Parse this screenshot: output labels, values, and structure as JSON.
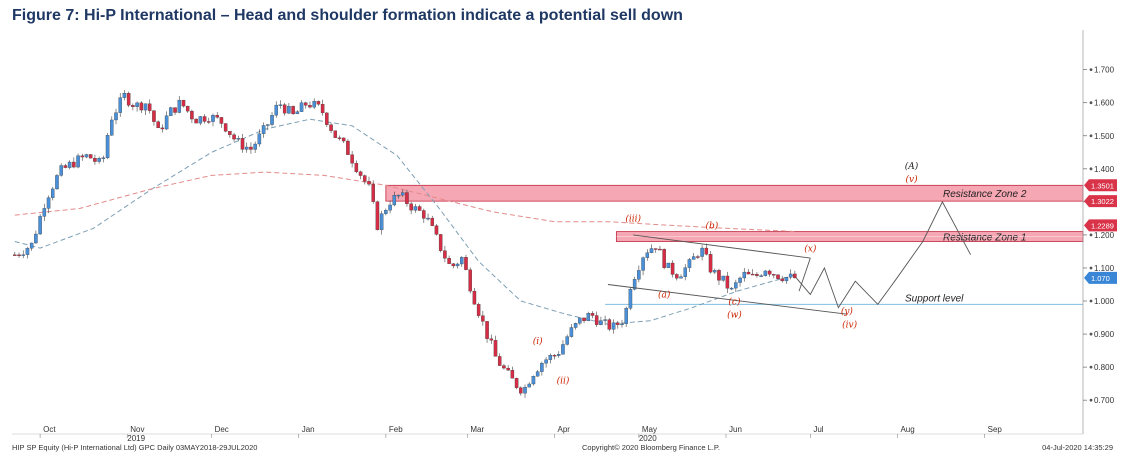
{
  "title": "Figure 7: Hi-P International – Head and shoulder formation indicate a potential sell down",
  "chart_data": {
    "type": "candlestick",
    "ylim": [
      0.64,
      1.82
    ],
    "y_ticks": [
      "0.700",
      "0.800",
      "0.900",
      "1.000",
      "1.100",
      "1.200",
      "1.300",
      "1.400",
      "1.500",
      "1.600",
      "1.700"
    ],
    "x_labels": [
      {
        "label": "Oct",
        "date": "2019-10-01"
      },
      {
        "label": "Nov",
        "date": "2019-11-01"
      },
      {
        "label": "Dec",
        "date": "2019-12-01"
      },
      {
        "label": "Jan",
        "date": "2020-01-01"
      },
      {
        "label": "Feb",
        "date": "2020-02-01"
      },
      {
        "label": "Mar",
        "date": "2020-03-01"
      },
      {
        "label": "Apr",
        "date": "2020-04-01"
      },
      {
        "label": "May",
        "date": "2020-05-01"
      },
      {
        "label": "Jun",
        "date": "2020-06-01"
      },
      {
        "label": "Jul",
        "date": "2020-07-01"
      },
      {
        "label": "Aug",
        "date": "2020-08-01"
      },
      {
        "label": "Sep",
        "date": "2020-09-01"
      }
    ],
    "year_labels": [
      {
        "label": "2019",
        "date": "2019-11-01"
      },
      {
        "label": "2020",
        "date": "2020-05-01"
      }
    ],
    "x_range": [
      "2019-09-21",
      "2020-10-06"
    ],
    "close_path": [
      [
        "2019-09-22",
        1.14
      ],
      [
        "2019-09-28",
        1.17
      ],
      [
        "2019-10-03",
        1.31
      ],
      [
        "2019-10-08",
        1.39
      ],
      [
        "2019-10-13",
        1.42
      ],
      [
        "2019-10-18",
        1.44
      ],
      [
        "2019-10-23",
        1.41
      ],
      [
        "2019-10-26",
        1.55
      ],
      [
        "2019-10-31",
        1.62
      ],
      [
        "2019-11-04",
        1.59
      ],
      [
        "2019-11-08",
        1.6
      ],
      [
        "2019-11-12",
        1.51
      ],
      [
        "2019-11-16",
        1.57
      ],
      [
        "2019-11-20",
        1.6
      ],
      [
        "2019-11-25",
        1.55
      ],
      [
        "2019-11-30",
        1.56
      ],
      [
        "2019-12-05",
        1.54
      ],
      [
        "2019-12-10",
        1.48
      ],
      [
        "2019-12-15",
        1.46
      ],
      [
        "2019-12-20",
        1.52
      ],
      [
        "2019-12-25",
        1.6
      ],
      [
        "2019-12-30",
        1.56
      ],
      [
        "2020-01-04",
        1.6
      ],
      [
        "2020-01-09",
        1.58
      ],
      [
        "2020-01-14",
        1.5
      ],
      [
        "2020-01-18",
        1.46
      ],
      [
        "2020-01-22",
        1.4
      ],
      [
        "2020-01-26",
        1.34
      ],
      [
        "2020-01-29",
        1.23
      ],
      [
        "2020-02-02",
        1.3
      ],
      [
        "2020-02-06",
        1.32
      ],
      [
        "2020-02-11",
        1.28
      ],
      [
        "2020-02-15",
        1.26
      ],
      [
        "2020-02-20",
        1.17
      ],
      [
        "2020-02-24",
        1.1
      ],
      [
        "2020-02-28",
        1.13
      ],
      [
        "2020-03-03",
        1.02
      ],
      [
        "2020-03-07",
        0.92
      ],
      [
        "2020-03-11",
        0.83
      ],
      [
        "2020-03-15",
        0.78
      ],
      [
        "2020-03-18",
        0.75
      ],
      [
        "2020-03-21",
        0.73
      ],
      [
        "2020-03-24",
        0.78
      ],
      [
        "2020-03-28",
        0.82
      ],
      [
        "2020-04-02",
        0.84
      ],
      [
        "2020-04-06",
        0.9
      ],
      [
        "2020-04-10",
        0.94
      ],
      [
        "2020-04-14",
        0.96
      ],
      [
        "2020-04-18",
        0.93
      ],
      [
        "2020-04-22",
        0.92
      ],
      [
        "2020-04-26",
        0.95
      ],
      [
        "2020-04-28",
        1.05
      ],
      [
        "2020-04-30",
        1.09
      ],
      [
        "2020-05-03",
        1.15
      ],
      [
        "2020-05-07",
        1.17
      ],
      [
        "2020-05-11",
        1.1
      ],
      [
        "2020-05-15",
        1.08
      ],
      [
        "2020-05-19",
        1.11
      ],
      [
        "2020-05-23",
        1.16
      ],
      [
        "2020-05-27",
        1.09
      ],
      [
        "2020-05-31",
        1.06
      ],
      [
        "2020-06-03",
        1.03
      ],
      [
        "2020-06-07",
        1.08
      ],
      [
        "2020-06-11",
        1.07
      ],
      [
        "2020-06-15",
        1.1
      ],
      [
        "2020-06-19",
        1.08
      ],
      [
        "2020-06-23",
        1.07
      ],
      [
        "2020-06-26",
        1.07
      ]
    ],
    "moving_averages": [
      {
        "style": "dashed-blue",
        "points": [
          [
            "2019-09-22",
            1.18
          ],
          [
            "2019-10-01",
            1.16
          ],
          [
            "2019-10-20",
            1.22
          ],
          [
            "2019-11-10",
            1.34
          ],
          [
            "2019-12-01",
            1.45
          ],
          [
            "2019-12-20",
            1.52
          ],
          [
            "2020-01-05",
            1.55
          ],
          [
            "2020-01-20",
            1.53
          ],
          [
            "2020-02-05",
            1.44
          ],
          [
            "2020-02-20",
            1.28
          ],
          [
            "2020-03-05",
            1.12
          ],
          [
            "2020-03-20",
            1.0
          ],
          [
            "2020-04-05",
            0.96
          ],
          [
            "2020-04-20",
            0.93
          ],
          [
            "2020-05-05",
            0.94
          ],
          [
            "2020-05-20",
            0.98
          ],
          [
            "2020-06-05",
            1.03
          ],
          [
            "2020-06-26",
            1.08
          ]
        ]
      },
      {
        "style": "dashed-red",
        "points": [
          [
            "2019-09-22",
            1.26
          ],
          [
            "2019-10-15",
            1.28
          ],
          [
            "2019-11-10",
            1.34
          ],
          [
            "2019-12-01",
            1.38
          ],
          [
            "2019-12-20",
            1.39
          ],
          [
            "2020-01-10",
            1.38
          ],
          [
            "2020-02-01",
            1.35
          ],
          [
            "2020-02-20",
            1.31
          ],
          [
            "2020-03-10",
            1.27
          ],
          [
            "2020-04-01",
            1.24
          ],
          [
            "2020-04-20",
            1.24
          ],
          [
            "2020-05-10",
            1.23
          ],
          [
            "2020-06-01",
            1.22
          ],
          [
            "2020-06-26",
            1.21
          ]
        ]
      }
    ],
    "resistance_zones": [
      {
        "label": "Resistance Zone 2",
        "low": 1.3022,
        "high": 1.3501,
        "from": "2020-02-01"
      },
      {
        "label": "Resistance Zone 1",
        "low": 1.18,
        "high": 1.21,
        "from": "2020-04-23"
      }
    ],
    "support": {
      "label": "Support level",
      "value": 0.99,
      "from": "2020-04-19"
    },
    "trendlines": [
      [
        [
          "2020-04-29",
          1.2
        ],
        [
          "2020-07-01",
          1.13
        ]
      ],
      [
        [
          "2020-04-20",
          1.05
        ],
        [
          "2020-07-14",
          0.96
        ]
      ]
    ],
    "projection": [
      [
        "2020-06-26",
        1.07
      ],
      [
        "2020-07-01",
        1.02
      ],
      [
        "2020-07-06",
        1.1
      ],
      [
        "2020-07-11",
        0.98
      ],
      [
        "2020-07-17",
        1.06
      ],
      [
        "2020-07-25",
        0.99
      ],
      [
        "2020-07-31",
        1.06
      ],
      [
        "2020-08-10",
        1.18
      ],
      [
        "2020-08-17",
        1.3
      ],
      [
        "2020-08-27",
        1.14
      ]
    ],
    "projection2": [
      [
        "2020-06-27",
        1.03
      ],
      [
        "2020-07-01",
        1.13
      ]
    ],
    "wave_labels": [
      {
        "text": "(i)",
        "date": "2020-03-26",
        "y": 0.87,
        "color": "#cc2200"
      },
      {
        "text": "(ii)",
        "date": "2020-04-04",
        "y": 0.75,
        "color": "#cc2200"
      },
      {
        "text": "(iii)",
        "date": "2020-04-29",
        "y": 1.24,
        "color": "#cc2200"
      },
      {
        "text": "(a)",
        "date": "2020-05-10",
        "y": 1.01,
        "color": "#cc2200"
      },
      {
        "text": "(b)",
        "date": "2020-05-27",
        "y": 1.22,
        "color": "#cc2200"
      },
      {
        "text": "(c)",
        "date": "2020-06-04",
        "y": 0.99,
        "color": "#cc2200"
      },
      {
        "text": "(w)",
        "date": "2020-06-04",
        "y": 0.95,
        "color": "#cc2200"
      },
      {
        "text": "(x)",
        "date": "2020-07-01",
        "y": 1.15,
        "color": "#cc2200"
      },
      {
        "text": "(y)",
        "date": "2020-07-14",
        "y": 0.96,
        "color": "#cc2200"
      },
      {
        "text": "(iv)",
        "date": "2020-07-15",
        "y": 0.92,
        "color": "#cc2200"
      },
      {
        "text": "(v)",
        "date": "2020-08-06",
        "y": 1.36,
        "color": "#cc2200"
      },
      {
        "text": "(A)",
        "date": "2020-08-06",
        "y": 1.4,
        "color": "#222222"
      }
    ],
    "price_tags": [
      {
        "text": "1.3501",
        "value": 1.3501,
        "color": "#d9334a"
      },
      {
        "text": "1.3022",
        "value": 1.3022,
        "color": "#d9334a"
      },
      {
        "text": "1.2289",
        "value": 1.2289,
        "color": "#d9334a"
      },
      {
        "text": "1.070",
        "value": 1.07,
        "color": "#3a86d6"
      }
    ]
  },
  "footer": {
    "left": "HIP SP Equity (Hi-P International Ltd) GPC  Daily 03MAY2018-29JUL2020",
    "center": "Copyright© 2020 Bloomberg Finance L.P.",
    "right": "04-Jul-2020 14:35:29"
  },
  "colors": {
    "up": "#4a90d9",
    "down": "#d42d45",
    "zone": "#f6a7b4",
    "zone_border": "#c0283f",
    "support": "#7fbfe0",
    "ma_blue": "#7d9fb5",
    "ma_red": "#e28a8a",
    "title": "#1f3864"
  }
}
